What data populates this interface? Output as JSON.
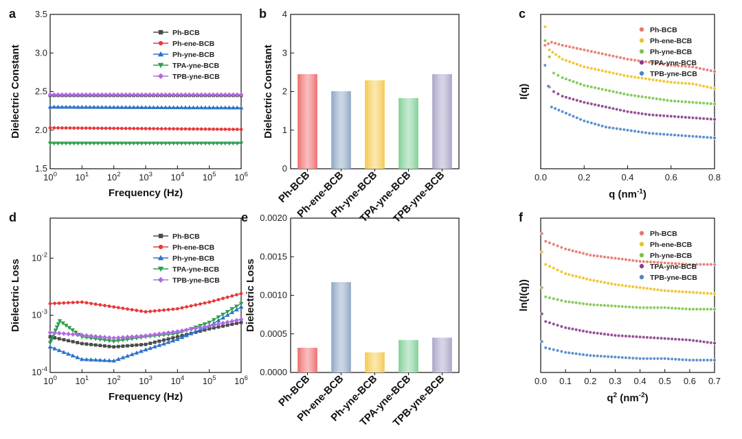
{
  "figure": {
    "panel_labels": [
      "a",
      "b",
      "c",
      "d",
      "e",
      "f"
    ]
  },
  "colors": {
    "Ph-BCB": "#4a4a4a",
    "Ph-ene-BCB": "#e8393a",
    "Ph-yne-BCB": "#2b72c9",
    "TPA-yne-BCB": "#2f9e4f",
    "TPB-yne-BCB": "#b06ae0"
  },
  "bar_colors": [
    "#ef6b6d",
    "#8fa6c4",
    "#f5c84c",
    "#7fcf94",
    "#a8a4c6"
  ],
  "scatter_colors": [
    "#e2786a",
    "#f0c020",
    "#7cc44a",
    "#8a3d8a",
    "#4a86c8"
  ],
  "chart_data": [
    {
      "panel": "a",
      "type": "line",
      "xscale": "log",
      "xlabel": "Frequency (Hz)",
      "ylabel": "Dielectric Constant",
      "xlim": [
        1,
        1000000
      ],
      "ylim": [
        1.5,
        3.5
      ],
      "xticks": [
        "10^0",
        "10^1",
        "10^2",
        "10^3",
        "10^4",
        "10^5",
        "10^6"
      ],
      "yticks": [
        "1.5",
        "2.0",
        "2.5",
        "3.0",
        "3.5"
      ],
      "legend": "top-center",
      "series": [
        {
          "name": "Ph-BCB",
          "y_start": 2.45,
          "y_end": 2.45,
          "marker": "square"
        },
        {
          "name": "Ph-ene-BCB",
          "y_start": 2.03,
          "y_end": 2.01,
          "marker": "circle"
        },
        {
          "name": "Ph-yne-BCB",
          "y_start": 2.3,
          "y_end": 2.29,
          "marker": "triangle-up"
        },
        {
          "name": "TPA-yne-BCB",
          "y_start": 1.83,
          "y_end": 1.83,
          "marker": "triangle-down"
        },
        {
          "name": "TPB-yne-BCB",
          "y_start": 2.46,
          "y_end": 2.46,
          "marker": "diamond"
        }
      ]
    },
    {
      "panel": "b",
      "type": "bar",
      "xlabel": "",
      "ylabel": "Dielectric Constant",
      "ylim": [
        0,
        4
      ],
      "yticks": [
        "0",
        "1",
        "2",
        "3",
        "4"
      ],
      "categories": [
        "Ph-BCB",
        "Ph-ene-BCB",
        "Ph-yne-BCB",
        "TPA-yne-BCB",
        "TPB-yne-BCB"
      ],
      "values": [
        2.45,
        2.01,
        2.29,
        1.83,
        2.45
      ]
    },
    {
      "panel": "c",
      "type": "scatter",
      "xlabel": "q (nm-1)",
      "ylabel": "I(q)",
      "xlim": [
        0,
        0.8
      ],
      "ylim": [
        0,
        1
      ],
      "xticks": [
        "0.0",
        "0.2",
        "0.4",
        "0.6",
        "0.8"
      ],
      "legend": "top-right",
      "series": [
        {
          "name": "Ph-BCB",
          "points": [
            [
              0.02,
              0.8
            ],
            [
              0.05,
              0.82
            ],
            [
              0.1,
              0.8
            ],
            [
              0.2,
              0.77
            ],
            [
              0.3,
              0.74
            ],
            [
              0.4,
              0.71
            ],
            [
              0.5,
              0.69
            ],
            [
              0.6,
              0.67
            ],
            [
              0.7,
              0.66
            ],
            [
              0.8,
              0.63
            ]
          ]
        },
        {
          "name": "Ph-ene-BCB",
          "points": [
            [
              0.02,
              0.92
            ],
            [
              0.04,
              0.77
            ],
            [
              0.1,
              0.71
            ],
            [
              0.2,
              0.66
            ],
            [
              0.3,
              0.63
            ],
            [
              0.4,
              0.6
            ],
            [
              0.5,
              0.58
            ],
            [
              0.6,
              0.56
            ],
            [
              0.7,
              0.55
            ],
            [
              0.8,
              0.52
            ]
          ]
        },
        {
          "name": "Ph-yne-BCB",
          "points": [
            [
              0.02,
              0.83
            ],
            [
              0.06,
              0.62
            ],
            [
              0.1,
              0.59
            ],
            [
              0.2,
              0.54
            ],
            [
              0.3,
              0.51
            ],
            [
              0.4,
              0.48
            ],
            [
              0.5,
              0.46
            ],
            [
              0.6,
              0.44
            ],
            [
              0.7,
              0.43
            ],
            [
              0.8,
              0.42
            ]
          ]
        },
        {
          "name": "TPA-yne-BCB",
          "points": [
            [
              0.04,
              0.53
            ],
            [
              0.06,
              0.5
            ],
            [
              0.1,
              0.47
            ],
            [
              0.2,
              0.43
            ],
            [
              0.3,
              0.4
            ],
            [
              0.4,
              0.37
            ],
            [
              0.5,
              0.35
            ],
            [
              0.6,
              0.34
            ],
            [
              0.7,
              0.33
            ],
            [
              0.8,
              0.32
            ]
          ]
        },
        {
          "name": "TPB-yne-BCB",
          "points": [
            [
              0.02,
              0.67
            ],
            [
              0.05,
              0.4
            ],
            [
              0.1,
              0.37
            ],
            [
              0.2,
              0.31
            ],
            [
              0.3,
              0.27
            ],
            [
              0.4,
              0.25
            ],
            [
              0.5,
              0.23
            ],
            [
              0.6,
              0.22
            ],
            [
              0.7,
              0.21
            ],
            [
              0.8,
              0.2
            ]
          ]
        }
      ]
    },
    {
      "panel": "d",
      "type": "line",
      "xscale": "log",
      "yscale": "log",
      "xlabel": "Frequency (Hz)",
      "ylabel": "Dielectric Loss",
      "xlim": [
        1,
        1000000
      ],
      "ylim": [
        0.0001,
        0.05
      ],
      "xticks": [
        "10^0",
        "10^1",
        "10^2",
        "10^3",
        "10^4",
        "10^5",
        "10^6"
      ],
      "yticks": [
        "10^-4",
        "10^-3",
        "10^-2"
      ],
      "legend": "top-center",
      "series": [
        {
          "name": "Ph-BCB",
          "x": [
            1,
            10,
            100,
            1000,
            10000,
            100000,
            1000000
          ],
          "y": [
            0.00042,
            0.00032,
            0.00028,
            0.00031,
            0.00042,
            0.00058,
            0.00075
          ],
          "marker": "square"
        },
        {
          "name": "Ph-ene-BCB",
          "x": [
            1,
            10,
            100,
            1000,
            10000,
            100000,
            1000000
          ],
          "y": [
            0.0016,
            0.0017,
            0.0014,
            0.00115,
            0.0013,
            0.0017,
            0.0024
          ],
          "marker": "circle"
        },
        {
          "name": "Ph-yne-BCB",
          "x": [
            1,
            10,
            100,
            1000,
            10000,
            100000,
            1000000
          ],
          "y": [
            0.00028,
            0.00017,
            0.00016,
            0.00025,
            0.00038,
            0.00065,
            0.0014
          ],
          "marker": "triangle-up"
        },
        {
          "name": "TPA-yne-BCB",
          "x": [
            1,
            2,
            10,
            100,
            1000,
            10000,
            100000,
            1000000
          ],
          "y": [
            0.00033,
            0.0008,
            0.00042,
            0.00035,
            0.00042,
            0.00048,
            0.00075,
            0.0016
          ],
          "marker": "triangle-down"
        },
        {
          "name": "TPB-yne-BCB",
          "x": [
            1,
            10,
            100,
            1000,
            10000,
            100000,
            1000000
          ],
          "y": [
            0.0005,
            0.00045,
            0.0004,
            0.00044,
            0.00052,
            0.00065,
            0.00085
          ],
          "marker": "diamond"
        }
      ]
    },
    {
      "panel": "e",
      "type": "bar",
      "xlabel": "",
      "ylabel": "Dielectric Loss",
      "ylim": [
        0,
        0.002
      ],
      "yticks": [
        "0.0000",
        "0.0005",
        "0.0010",
        "0.0015",
        "0.0020"
      ],
      "categories": [
        "Ph-BCB",
        "Ph-ene-BCB",
        "Ph-yne-BCB",
        "TPA-yne-BCB",
        "TPB-yne-BCB"
      ],
      "values": [
        0.00032,
        0.00117,
        0.00026,
        0.00042,
        0.00045
      ]
    },
    {
      "panel": "f",
      "type": "scatter",
      "xlabel": "q2 (nm-2)",
      "ylabel": "ln(I(q))",
      "xlim": [
        0,
        0.7
      ],
      "ylim": [
        0,
        1
      ],
      "xticks": [
        "0.0",
        "0.1",
        "0.2",
        "0.3",
        "0.4",
        "0.5",
        "0.6",
        "0.7"
      ],
      "legend": "top-right",
      "series": [
        {
          "name": "Ph-BCB",
          "points": [
            [
              0.005,
              0.9
            ],
            [
              0.02,
              0.85
            ],
            [
              0.1,
              0.8
            ],
            [
              0.2,
              0.76
            ],
            [
              0.3,
              0.74
            ],
            [
              0.4,
              0.72
            ],
            [
              0.5,
              0.71
            ],
            [
              0.6,
              0.7
            ],
            [
              0.7,
              0.7
            ]
          ]
        },
        {
          "name": "Ph-ene-BCB",
          "points": [
            [
              0.005,
              0.78
            ],
            [
              0.02,
              0.7
            ],
            [
              0.1,
              0.64
            ],
            [
              0.2,
              0.6
            ],
            [
              0.3,
              0.57
            ],
            [
              0.4,
              0.55
            ],
            [
              0.5,
              0.53
            ],
            [
              0.6,
              0.52
            ],
            [
              0.7,
              0.51
            ]
          ]
        },
        {
          "name": "Ph-yne-BCB",
          "points": [
            [
              0.005,
              0.55
            ],
            [
              0.02,
              0.49
            ],
            [
              0.1,
              0.46
            ],
            [
              0.2,
              0.44
            ],
            [
              0.3,
              0.43
            ],
            [
              0.4,
              0.42
            ],
            [
              0.5,
              0.42
            ],
            [
              0.6,
              0.41
            ],
            [
              0.7,
              0.41
            ]
          ]
        },
        {
          "name": "TPA-yne-BCB",
          "points": [
            [
              0.005,
              0.38
            ],
            [
              0.02,
              0.33
            ],
            [
              0.1,
              0.29
            ],
            [
              0.2,
              0.26
            ],
            [
              0.3,
              0.24
            ],
            [
              0.4,
              0.23
            ],
            [
              0.5,
              0.22
            ],
            [
              0.6,
              0.21
            ],
            [
              0.7,
              0.19
            ]
          ]
        },
        {
          "name": "TPB-yne-BCB",
          "points": [
            [
              0.005,
              0.2
            ],
            [
              0.02,
              0.16
            ],
            [
              0.1,
              0.13
            ],
            [
              0.2,
              0.11
            ],
            [
              0.3,
              0.1
            ],
            [
              0.4,
              0.09
            ],
            [
              0.5,
              0.09
            ],
            [
              0.6,
              0.08
            ],
            [
              0.7,
              0.08
            ]
          ]
        }
      ]
    }
  ]
}
